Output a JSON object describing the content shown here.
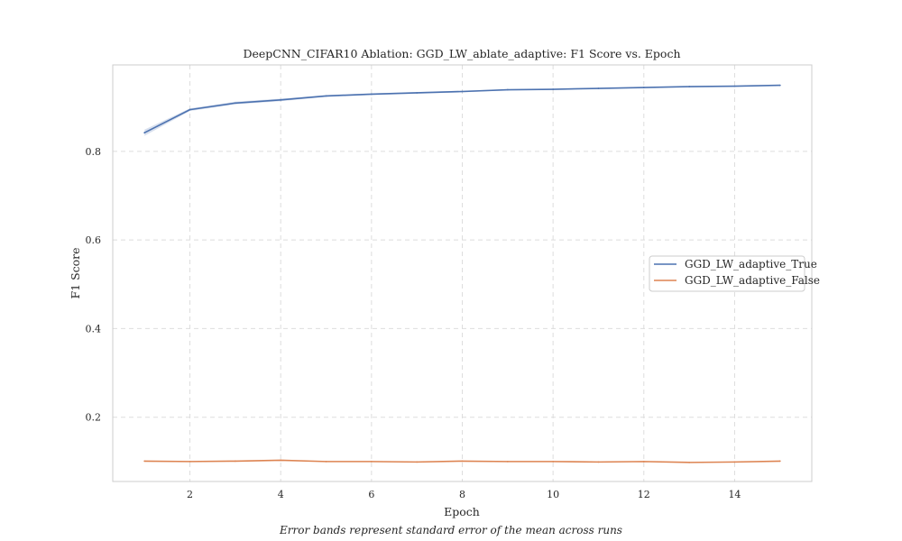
{
  "chart_data": {
    "type": "line",
    "title": "DeepCNN_CIFAR10 Ablation: GGD_LW_ablate_adaptive: F1 Score vs. Epoch",
    "xlabel": "Epoch",
    "ylabel": "F1 Score",
    "xlim": [
      0.3,
      15.7
    ],
    "ylim": [
      0.055,
      0.995
    ],
    "xticks": [
      2,
      4,
      6,
      8,
      10,
      12,
      14
    ],
    "yticks": [
      0.2,
      0.4,
      0.6,
      0.8
    ],
    "grid": true,
    "legend_position": "right",
    "x": [
      1,
      2,
      3,
      4,
      5,
      6,
      7,
      8,
      9,
      10,
      11,
      12,
      13,
      14,
      15
    ],
    "series": [
      {
        "name": "GGD_LW_adaptive_True",
        "color": "#4c72b0",
        "values": [
          0.842,
          0.894,
          0.909,
          0.916,
          0.925,
          0.929,
          0.932,
          0.935,
          0.939,
          0.94,
          0.942,
          0.944,
          0.946,
          0.947,
          0.949
        ],
        "error": [
          0.007,
          0.003,
          0.003,
          0.003,
          0.002,
          0.002,
          0.002,
          0.002,
          0.001,
          0.001,
          0.001,
          0.001,
          0.001,
          0.001,
          0.001
        ]
      },
      {
        "name": "GGD_LW_adaptive_False",
        "color": "#dd8452",
        "values": [
          0.101,
          0.1,
          0.101,
          0.103,
          0.1,
          0.1,
          0.099,
          0.101,
          0.1,
          0.1,
          0.099,
          0.1,
          0.098,
          0.099,
          0.101
        ],
        "error": [
          0,
          0,
          0,
          0,
          0,
          0,
          0,
          0,
          0,
          0,
          0,
          0,
          0,
          0,
          0
        ]
      }
    ]
  },
  "caption": "Error bands represent standard error of the mean across runs"
}
